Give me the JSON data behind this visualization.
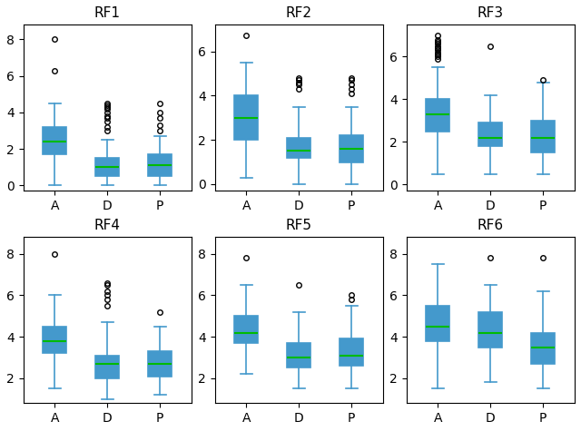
{
  "subplots": [
    {
      "title": "RF1",
      "categories": [
        "A",
        "D",
        "P"
      ],
      "boxes": [
        {
          "q1": 1.7,
          "median": 2.4,
          "q3": 3.2,
          "whislo": 0.0,
          "whishi": 4.5,
          "fliers": [
            6.3,
            8.0
          ]
        },
        {
          "q1": 0.5,
          "median": 1.0,
          "q3": 1.5,
          "whislo": 0.0,
          "whishi": 2.5,
          "fliers": [
            3.0,
            3.2,
            3.5,
            3.7,
            3.8,
            4.0,
            4.2,
            4.3,
            4.4,
            4.5
          ]
        },
        {
          "q1": 0.5,
          "median": 1.1,
          "q3": 1.7,
          "whislo": 0.0,
          "whishi": 2.7,
          "fliers": [
            3.0,
            3.3,
            3.7,
            4.0,
            4.5
          ]
        }
      ],
      "ylim": [
        -0.3,
        8.8
      ]
    },
    {
      "title": "RF2",
      "categories": [
        "A",
        "D",
        "P"
      ],
      "boxes": [
        {
          "q1": 2.0,
          "median": 3.0,
          "q3": 4.0,
          "whislo": 0.3,
          "whishi": 5.5,
          "fliers": [
            6.7
          ]
        },
        {
          "q1": 1.2,
          "median": 1.5,
          "q3": 2.1,
          "whislo": 0.0,
          "whishi": 3.5,
          "fliers": [
            4.3,
            4.5,
            4.6,
            4.7,
            4.8
          ]
        },
        {
          "q1": 1.0,
          "median": 1.6,
          "q3": 2.2,
          "whislo": 0.0,
          "whishi": 3.5,
          "fliers": [
            4.1,
            4.3,
            4.5,
            4.7,
            4.8
          ]
        }
      ],
      "ylim": [
        -0.3,
        7.2
      ]
    },
    {
      "title": "RF3",
      "categories": [
        "A",
        "D",
        "P"
      ],
      "boxes": [
        {
          "q1": 2.5,
          "median": 3.3,
          "q3": 4.0,
          "whislo": 0.5,
          "whishi": 5.5,
          "fliers": [
            5.9,
            6.0,
            6.1,
            6.2,
            6.3,
            6.4,
            6.5,
            6.6,
            6.7,
            6.8,
            7.0
          ]
        },
        {
          "q1": 1.8,
          "median": 2.2,
          "q3": 2.9,
          "whislo": 0.5,
          "whishi": 4.2,
          "fliers": [
            6.5
          ]
        },
        {
          "q1": 1.5,
          "median": 2.2,
          "q3": 3.0,
          "whislo": 0.5,
          "whishi": 4.8,
          "fliers": [
            4.9
          ]
        }
      ],
      "ylim": [
        -0.3,
        7.5
      ]
    },
    {
      "title": "RF4",
      "categories": [
        "A",
        "D",
        "P"
      ],
      "boxes": [
        {
          "q1": 3.2,
          "median": 3.8,
          "q3": 4.5,
          "whislo": 1.5,
          "whishi": 6.0,
          "fliers": [
            8.0
          ]
        },
        {
          "q1": 2.0,
          "median": 2.7,
          "q3": 3.1,
          "whislo": 1.0,
          "whishi": 4.7,
          "fliers": [
            5.5,
            5.8,
            6.0,
            6.2,
            6.5,
            6.6
          ]
        },
        {
          "q1": 2.1,
          "median": 2.7,
          "q3": 3.3,
          "whislo": 1.2,
          "whishi": 4.5,
          "fliers": [
            5.2
          ]
        }
      ],
      "ylim": [
        0.8,
        8.8
      ]
    },
    {
      "title": "RF5",
      "categories": [
        "A",
        "D",
        "P"
      ],
      "boxes": [
        {
          "q1": 3.7,
          "median": 4.2,
          "q3": 5.0,
          "whislo": 2.2,
          "whishi": 6.5,
          "fliers": [
            7.8
          ]
        },
        {
          "q1": 2.5,
          "median": 3.0,
          "q3": 3.7,
          "whislo": 1.5,
          "whishi": 5.2,
          "fliers": [
            6.5
          ]
        },
        {
          "q1": 2.6,
          "median": 3.1,
          "q3": 3.9,
          "whislo": 1.5,
          "whishi": 5.5,
          "fliers": [
            5.8,
            6.0
          ]
        }
      ],
      "ylim": [
        0.8,
        8.8
      ]
    },
    {
      "title": "RF6",
      "categories": [
        "A",
        "D",
        "P"
      ],
      "boxes": [
        {
          "q1": 3.8,
          "median": 4.5,
          "q3": 5.5,
          "whislo": 1.5,
          "whishi": 7.5,
          "fliers": []
        },
        {
          "q1": 3.5,
          "median": 4.2,
          "q3": 5.2,
          "whislo": 1.8,
          "whishi": 6.5,
          "fliers": [
            7.8
          ]
        },
        {
          "q1": 2.7,
          "median": 3.5,
          "q3": 4.2,
          "whislo": 1.5,
          "whishi": 6.2,
          "fliers": [
            7.8
          ]
        }
      ],
      "ylim": [
        0.8,
        8.8
      ]
    }
  ],
  "box_facecolor": "white",
  "box_edgecolor": "#4499cc",
  "median_color": "#00bb00",
  "whisker_color": "#4499cc",
  "cap_color": "#4499cc",
  "flier_marker": "o",
  "flier_markersize": 4,
  "flier_edgecolor": "black",
  "figsize": [
    6.4,
    4.75
  ]
}
